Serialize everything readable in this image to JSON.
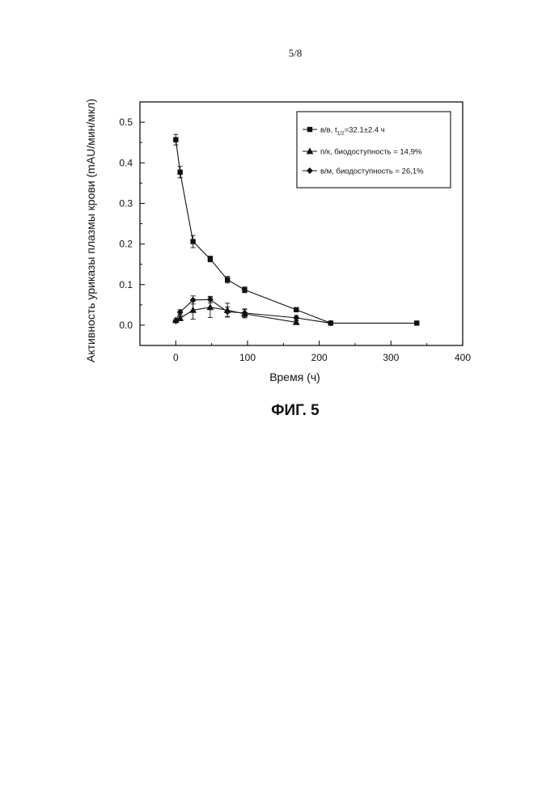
{
  "page": {
    "page_number": "5/8",
    "caption": "ФИГ. 5"
  },
  "chart_data": {
    "type": "line",
    "title": "",
    "xlabel": "Время (ч)",
    "ylabel": "Активность уриказы плазмы крови (mAU/мин/мкл)",
    "xlim": [
      -50,
      400
    ],
    "ylim": [
      -0.05,
      0.55
    ],
    "xticks": [
      0,
      100,
      200,
      300,
      400
    ],
    "yticks": [
      0.0,
      0.1,
      0.2,
      0.3,
      0.4,
      0.5
    ],
    "xtick_labels": [
      "0",
      "100",
      "200",
      "300",
      "400"
    ],
    "ytick_labels": [
      "0.0",
      "0.1",
      "0.2",
      "0.3",
      "0.4",
      "0.5"
    ],
    "grid": false,
    "legend_position": "top-right",
    "series": [
      {
        "name": "в/в, t1/2=32.1±2.4 ч",
        "legend_main": "в/в,  t",
        "legend_sub": "1/2",
        "legend_rest": "=32.1±2.4  ч",
        "marker": "square",
        "x": [
          0,
          6,
          24,
          48,
          72,
          96,
          168,
          216,
          336
        ],
        "y": [
          0.457,
          0.377,
          0.206,
          0.163,
          0.112,
          0.087,
          0.038,
          0.005,
          0.005
        ],
        "err": [
          0.013,
          0.014,
          0.015,
          0.007,
          0.008,
          0.007,
          0.005,
          0.002,
          0.002
        ]
      },
      {
        "name": "п/к, биодоступность = 14,9%",
        "marker": "triangle",
        "x": [
          0,
          6,
          24,
          48,
          72,
          96,
          168
        ],
        "y": [
          0.012,
          0.017,
          0.037,
          0.044,
          0.037,
          0.028,
          0.007
        ],
        "err": [
          0.004,
          0.006,
          0.022,
          0.025,
          0.017,
          0.01,
          0.004
        ]
      },
      {
        "name": "в/м, биодоступность = 26,1%",
        "marker": "diamond",
        "x": [
          0,
          6,
          24,
          48,
          72,
          96,
          168,
          216
        ],
        "y": [
          0.01,
          0.032,
          0.062,
          0.063,
          0.033,
          0.03,
          0.018,
          0.005
        ],
        "err": [
          0.003,
          0.006,
          0.01,
          0.008,
          0.012,
          0.01,
          0.006,
          0.002
        ]
      }
    ]
  }
}
